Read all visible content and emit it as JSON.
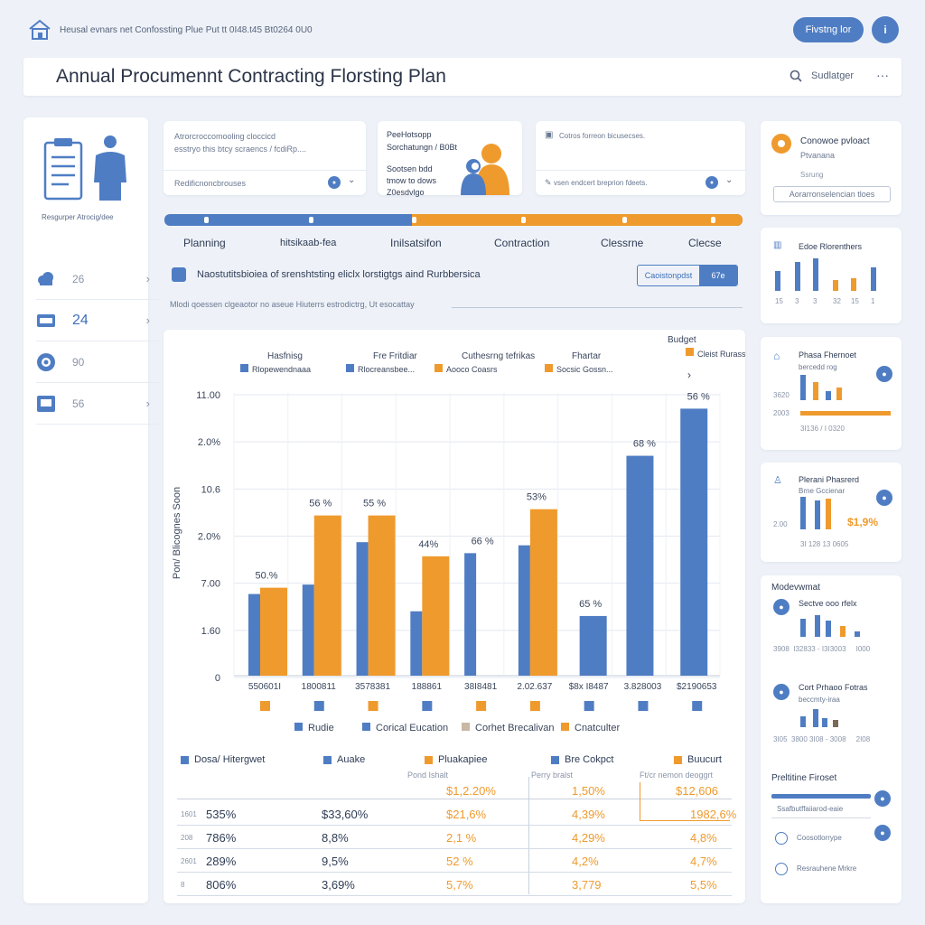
{
  "topbar": {
    "breadcrumb": "Heusal evnars net Confossting Plue Put tt 0I48.t45 Bt0264 0U0",
    "action_button": "Fivstng lor",
    "info_button": "i"
  },
  "header": {
    "title": "Annual Procumennt Contracting Florsting Plan",
    "search_label": "Sudlatger",
    "more": "···"
  },
  "sidebar": {
    "caption": "Resgurper Atrocig/dee",
    "items": [
      {
        "icon": "cloud-icon",
        "value": "26"
      },
      {
        "icon": "card-icon",
        "value": "24"
      },
      {
        "icon": "circle-icon",
        "value": "90"
      },
      {
        "icon": "image-icon",
        "value": "56"
      }
    ]
  },
  "info_cards": {
    "card1": {
      "line1": "Atrorcroccomooling cloccicd",
      "line2": "esstryo this btcy scraencs / fcdiRp....",
      "dropdown": "Redificnoncbrouses"
    },
    "card2": {
      "line1": "PeeHotsopp",
      "line2": "Sorchatungn / B0Bt",
      "line3": "Sootsen bdd",
      "line4": "tmow to dows",
      "line5": "Z0esdvlgo"
    },
    "card3": {
      "line1": "Cotros forreon bicusecses.",
      "dropdown": "vsen endcert breprion fdeets."
    }
  },
  "timeline": {
    "stages": [
      "Planning",
      "hitsikaab-fea",
      "Inilsatsifon",
      "Contraction",
      "Clessrne",
      "Clecse"
    ]
  },
  "notice": {
    "text": "Naostutitsbioiea of srenshtsting eliclx lorstigtgs aind Rurbbersica",
    "button": "Caoistonpdst",
    "button2": "67e",
    "subtext": "Mlodi qoessen clgeaotor no aseue Hiuterrs estrodictrg, Ut esocattay"
  },
  "chart_data": {
    "type": "bar",
    "title": "",
    "ylabel": "Pon/ Blicognes Soon",
    "yticks": [
      "11.00",
      "2.0%",
      "10.6",
      "2.0%",
      "7.00",
      "1.60",
      "0"
    ],
    "categories": [
      "550601I",
      "1800811",
      "3578381",
      "188861",
      "38I8481",
      "2.02.637",
      "$8x I8487",
      "3.828003",
      "$2190653"
    ],
    "legend_top": [
      {
        "group": "Hasfnisg",
        "label": "Rlopewendnaaa",
        "color": "#4f7dc3"
      },
      {
        "group": "Fre Fritdiar",
        "label": "Rlocreansbee...",
        "color": "#4f7dc3"
      },
      {
        "group": "Cuthesrng tefrikas",
        "label": "Aooco Coasrs",
        "color": "#ef9a2d"
      },
      {
        "group": "Fhartar",
        "label": "Socsic Gossn...",
        "color": "#ef9a2d"
      },
      {
        "group": "Budget",
        "label": "Cleist Rurasst",
        "color": "#ef9a2d"
      }
    ],
    "series": [
      {
        "name": "Blue",
        "values": [
          5.2,
          5.8,
          8.5,
          4.1,
          7.8,
          8.3,
          null,
          14.0,
          17.0
        ]
      },
      {
        "name": "Orange",
        "values": [
          5.6,
          10.2,
          10.2,
          7.6,
          null,
          10.6,
          null,
          null,
          null
        ]
      },
      {
        "name": "Blue2",
        "values": [
          null,
          null,
          null,
          null,
          null,
          null,
          3.8,
          null,
          null
        ]
      }
    ],
    "data_labels": [
      "50.%",
      "56 %",
      "55 %",
      "44%",
      "66 %",
      "53%",
      "65 %",
      "68 %",
      "56 %"
    ],
    "ylim": [
      0,
      18
    ],
    "legend_bottom": [
      {
        "label": "Rudie",
        "color": "#4f7dc3"
      },
      {
        "label": "Corical Eucation",
        "color": "#4f7dc3"
      },
      {
        "label": "Corhet Brecalivan",
        "color": "#c8b8a4"
      },
      {
        "label": "Cnatculter",
        "color": "#ef9a2d"
      }
    ]
  },
  "table": {
    "headers": [
      "Dosa/ Hitergwet",
      "Auake",
      "Pluakapiee",
      "Bre Cokpct",
      "Buucurt"
    ],
    "subheaders": [
      "Pond Ishalt",
      "Perry bralst",
      "Ft/cr nemon deoggrt"
    ],
    "first_row": [
      "",
      "",
      "$1,2.20%",
      "1,50%",
      "$12,606"
    ],
    "rows": [
      {
        "idx": "1601",
        "c1": "535%",
        "c2": "$33,60%",
        "c3": "$21,6%",
        "c4": "4,39%",
        "c5": "1982,6%"
      },
      {
        "idx": "208",
        "c1": "786%",
        "c2": "8,8%",
        "c3": "2,1 %",
        "c4": "4,29%",
        "c5": "4,8%"
      },
      {
        "idx": "2601",
        "c1": "289%",
        "c2": "9,5%",
        "c3": "52 %",
        "c4": "4,2%",
        "c5": "4,7%"
      },
      {
        "idx": "8",
        "c1": "806%",
        "c2": "3,69%",
        "c3": "5,7%",
        "c4": "3,779",
        "c5": "5,5%"
      }
    ]
  },
  "right_panel": {
    "card1": {
      "title": "Conowoe pvloact",
      "sub": "Ptvanana",
      "sub2": "Ssrung",
      "button": "Aorarronselencian tloes"
    },
    "card2": {
      "title": "Edoe Rlorenthers",
      "ticks": [
        "15",
        "3",
        "3",
        "32",
        "15",
        "1"
      ]
    },
    "card3": {
      "title": "Phasa Fhernoet",
      "sub": "bercedd rog",
      "y1": "3620",
      "y2": "2003",
      "ticks": "3I136 / I 0320"
    },
    "card4": {
      "title": "Plerani Phasrerd",
      "sub": "Brne Gccienar",
      "value": "$1,9%",
      "y": "2.00",
      "ticks": "3I 128 13 0605"
    },
    "card5": {
      "title": "Modevwmat",
      "sub": "Sectve ooo rfelx",
      "ticks": "3908  I32833 - I3I3003     I000"
    },
    "card6": {
      "title": "Cort Prhaoo Fotras",
      "sub": "beccmty-iraa",
      "ticks": "3I05  3800 3I08 - 3008     2I08"
    },
    "card7": {
      "title": "Preltitine Firoset",
      "items": [
        "Ssafbutffaiiarod-eaie",
        "Coosotlorrype",
        "Resrauhene Mrkre"
      ]
    }
  }
}
